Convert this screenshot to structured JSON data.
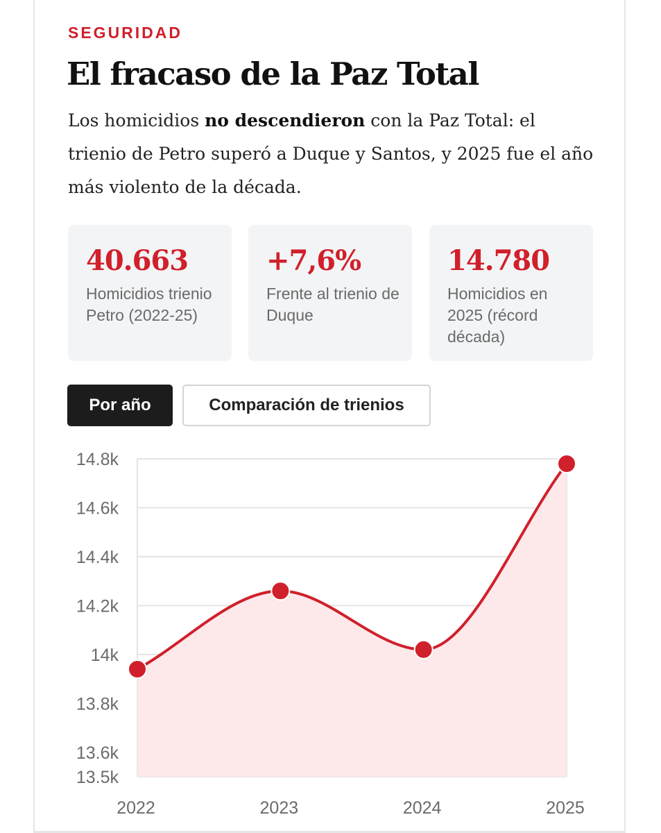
{
  "article": {
    "kicker": "SEGURIDAD",
    "headline": "El fracaso de la Paz Total",
    "dek": {
      "part1": "Los homicidios ",
      "bold": "no descendieron",
      "part2": " con la Paz Total: el trienio de Petro superó a Duque y Santos, y 2025 fue el año más violento de la década."
    }
  },
  "stats": [
    {
      "value": "40.663",
      "label": "Homicidios trienio Petro (2022-25)"
    },
    {
      "value": "+7,6%",
      "label": "Frente al trienio de Duque"
    },
    {
      "value": "14.780",
      "label": "Homicidios en 2025 (récord década)"
    }
  ],
  "tabs": {
    "active": "Por año",
    "inactive": "Comparación de trienios"
  },
  "colors": {
    "accent": "#d0202b",
    "area_fill": "#fde8ea",
    "grid": "#e4e4e4"
  },
  "chart_data": {
    "type": "area",
    "title": "",
    "xlabel": "",
    "ylabel": "",
    "categories": [
      "2022",
      "2023",
      "2024",
      "2025"
    ],
    "series": [
      {
        "values": [
          13940,
          14260,
          14020,
          14780
        ]
      }
    ],
    "ylim": [
      13500,
      14800
    ],
    "yticks": [
      13500,
      13600,
      13800,
      14000,
      14200,
      14400,
      14600,
      14800
    ],
    "ytick_labels": [
      "13.5k",
      "13.6k",
      "13.8k",
      "14k",
      "14.2k",
      "14.4k",
      "14.6k",
      "14.8k"
    ],
    "grid": true,
    "curve": "smooth"
  }
}
